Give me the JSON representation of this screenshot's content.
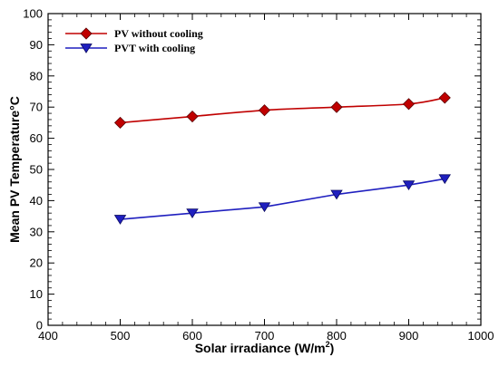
{
  "chart_data": {
    "type": "line",
    "x": [
      500,
      600,
      700,
      800,
      900,
      950
    ],
    "series": [
      {
        "name": "PV without cooling",
        "values": [
          65,
          67,
          69,
          70,
          71,
          73
        ],
        "color": "#c00000",
        "marker": "diamond"
      },
      {
        "name": "PVT with cooling",
        "values": [
          34,
          36,
          38,
          42,
          45,
          47
        ],
        "color": "#1f1fbf",
        "marker": "triangle-down"
      }
    ],
    "xlabel": {
      "text": "Solar irradiance (W/m",
      "superscript": "2",
      "suffix": ")"
    },
    "ylabel": "Mean PV Temperature°C",
    "xlim": [
      400,
      1000
    ],
    "ylim": [
      0,
      100
    ],
    "xticks": [
      "400",
      "500",
      "600",
      "700",
      "800",
      "900",
      "1000"
    ],
    "yticks": [
      "0",
      "10",
      "20",
      "30",
      "40",
      "50",
      "60",
      "70",
      "80",
      "90",
      "100"
    ],
    "grid": false,
    "legend_position": "top-left"
  }
}
